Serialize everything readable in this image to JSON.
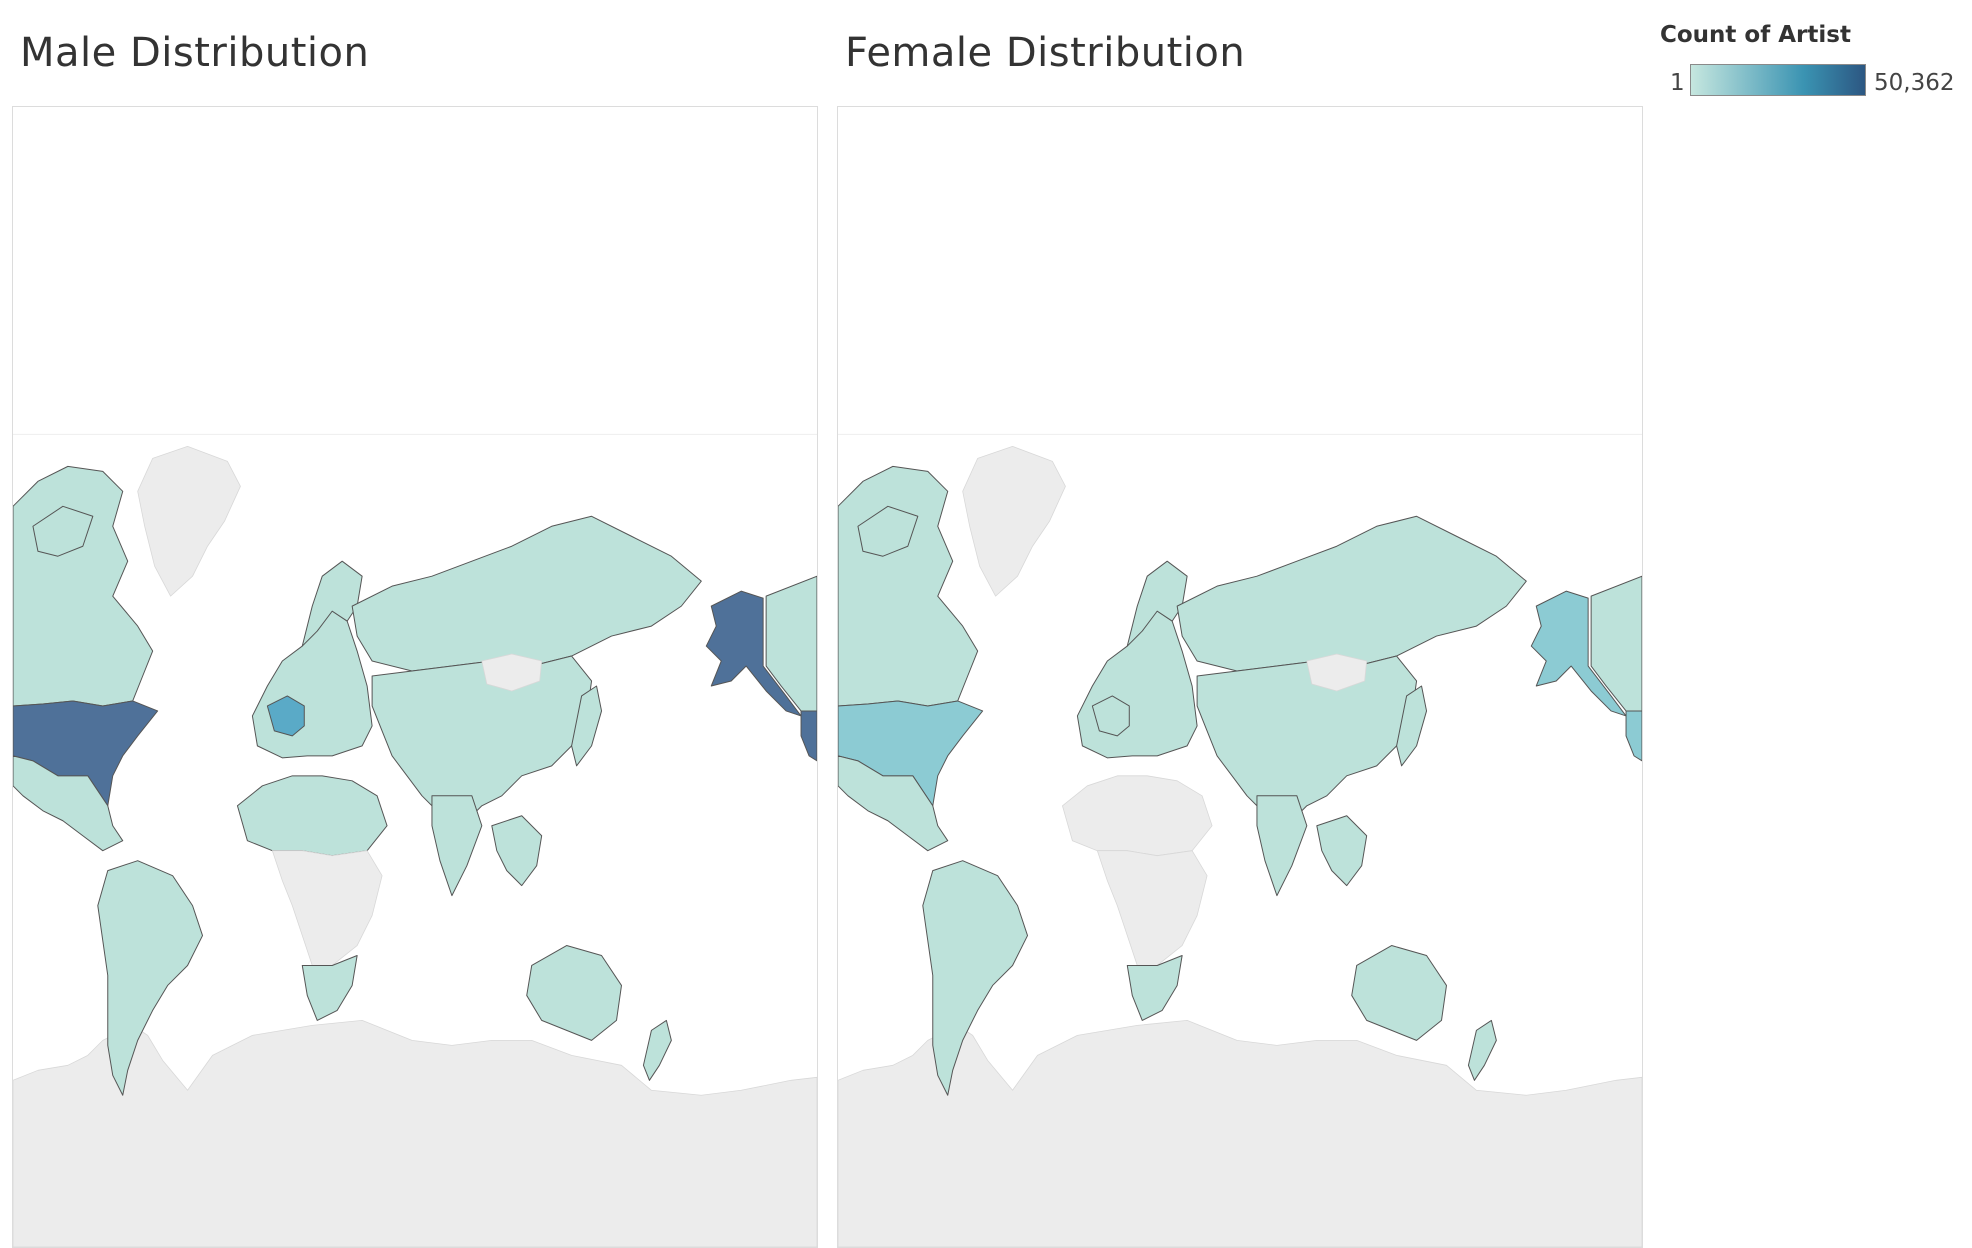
{
  "maps": {
    "male": {
      "title": "Male Distribution"
    },
    "female": {
      "title": "Female Distribution"
    }
  },
  "legend": {
    "title": "Count of Artist",
    "min_label": "1",
    "max_label": "50,362",
    "min_value": 1,
    "max_value": 50362,
    "color_low": "#c6e7df",
    "color_mid": "#3a93b2",
    "color_high": "#2c5782"
  },
  "colors": {
    "no_data": "#ececec",
    "border": "#555555",
    "low": "#bde2da",
    "medium": "#8ccbd3",
    "mid_high": "#5aaac7",
    "high": "#4f7199",
    "ocean": "#ffffff"
  },
  "regions": {
    "male": {
      "north_america_north": "low",
      "usa": "high",
      "alaska": "high",
      "mexico_central": "low",
      "south_america": "low",
      "europe": "low",
      "france": "mid_high",
      "russia": "low",
      "asia_misc": "low",
      "mongolia": "no_data",
      "africa_north": "low",
      "africa_central": "no_data",
      "africa_south": "low",
      "australia": "low",
      "nz": "low",
      "greenland": "no_data",
      "antarctica": "no_data"
    },
    "female": {
      "north_america_north": "low",
      "usa": "medium",
      "alaska": "medium",
      "mexico_central": "low",
      "south_america": "low",
      "europe": "low",
      "france": "low",
      "russia": "low",
      "asia_misc": "low",
      "mongolia": "no_data",
      "africa_north": "no_data",
      "africa_central": "no_data",
      "africa_south": "low",
      "australia": "low",
      "nz": "low",
      "greenland": "no_data",
      "antarctica": "no_data"
    }
  }
}
